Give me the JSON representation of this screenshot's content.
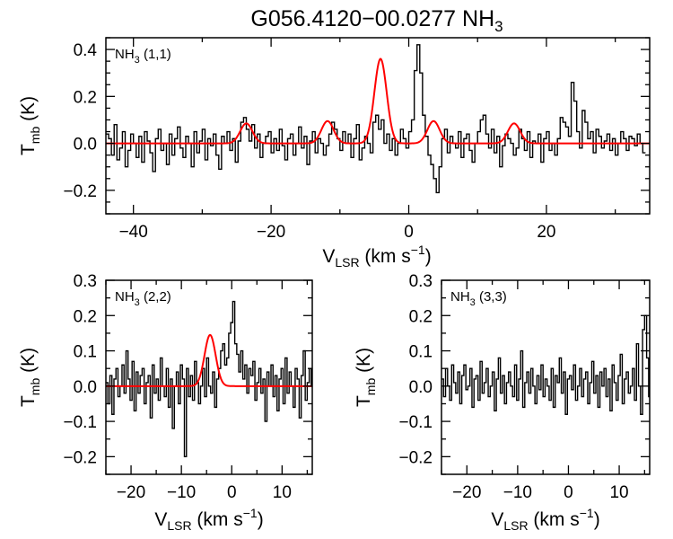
{
  "figure_title": {
    "main": "G056.4120−00.0277 NH",
    "sub": "3"
  },
  "colors": {
    "spectrum": "#000000",
    "fit": "#ff0000",
    "frame": "#000000",
    "background": "#ffffff"
  },
  "chart_data": [
    {
      "type": "line",
      "panel": "top",
      "panel_label": {
        "pre": "NH",
        "sub": "3",
        "post": " (1,1)"
      },
      "xlabel": {
        "pre": "V",
        "sub": "LSR",
        "post": " (km s",
        "sup": "−1",
        "end": ")"
      },
      "ylabel": {
        "pre": "T",
        "sub": "mb",
        "post": " (K)"
      },
      "xlim": [
        -44,
        35
      ],
      "ylim": [
        -0.3,
        0.45
      ],
      "xticks": [
        -40,
        -20,
        0,
        20
      ],
      "xtick_labels": [
        "−40",
        "−20",
        "0",
        "20"
      ],
      "yticks": [
        -0.2,
        0.0,
        0.2,
        0.4
      ],
      "ytick_labels": [
        "−0.2",
        "0.0",
        "0.2",
        "0.4"
      ],
      "series": [
        {
          "name": "spectrum",
          "style": "step",
          "channel_width": 0.4,
          "x_start": -44.0,
          "values": [
            0.04,
            0.02,
            -0.05,
            0.08,
            -0.07,
            -0.02,
            0.05,
            -0.1,
            -0.03,
            0.04,
            0.0,
            -0.06,
            0.03,
            -0.08,
            0.05,
            0.01,
            -0.04,
            -0.12,
            0.02,
            0.06,
            -0.03,
            0.0,
            -0.09,
            0.04,
            -0.05,
            0.02,
            0.07,
            -0.02,
            -0.06,
            0.03,
            0.0,
            -0.1,
            0.05,
            -0.04,
            0.01,
            0.06,
            -0.07,
            0.02,
            -0.01,
            0.04,
            -0.05,
            -0.11,
            0.03,
            0.0,
            0.05,
            -0.03,
            0.02,
            -0.08,
            0.01,
            0.09,
            0.11,
            0.06,
            0.01,
            0.08,
            -0.02,
            0.04,
            -0.06,
            0.0,
            0.03,
            0.05,
            -0.04,
            0.02,
            -0.03,
            0.06,
            -0.01,
            -0.07,
            0.02,
            0.04,
            -0.05,
            0.0,
            0.07,
            -0.02,
            0.03,
            -0.09,
            0.01,
            0.05,
            -0.04,
            0.02,
            0.0,
            -0.05,
            -0.01,
            0.04,
            0.09,
            0.06,
            0.02,
            -0.03,
            0.05,
            0.0,
            0.04,
            -0.06,
            0.02,
            0.08,
            -0.07,
            -0.02,
            0.03,
            0.0,
            -0.04,
            0.09,
            0.12,
            0.06,
            0.1,
            0.0,
            0.04,
            -0.03,
            0.02,
            -0.05,
            0.0,
            0.06,
            0.02,
            -0.02,
            0.05,
            0.1,
            0.31,
            0.42,
            0.3,
            0.12,
            0.03,
            -0.05,
            -0.09,
            -0.15,
            -0.21,
            -0.1,
            0.02,
            0.06,
            -0.04,
            0.03,
            0.0,
            -0.02,
            0.05,
            -0.06,
            0.02,
            0.04,
            -0.03,
            -0.08,
            0.0,
            0.05,
            0.1,
            0.12,
            0.04,
            -0.02,
            0.06,
            -0.04,
            0.03,
            -0.1,
            -0.01,
            0.04,
            0.02,
            0.0,
            -0.05,
            -0.02,
            0.06,
            0.02,
            -0.03,
            0.05,
            -0.06,
            0.01,
            0.0,
            0.04,
            -0.08,
            0.02,
            0.05,
            -0.03,
            0.0,
            -0.05,
            0.02,
            0.11,
            0.09,
            0.07,
            0.03,
            0.26,
            0.18,
            0.05,
            -0.02,
            0.14,
            0.09,
            0.02,
            0.05,
            -0.04,
            0.06,
            0.03,
            -0.02,
            0.01,
            0.04,
            -0.03,
            0.02,
            -0.05,
            0.0,
            0.05,
            0.02,
            -0.03,
            0.03,
            0.02,
            -0.01,
            0.04,
            0.0,
            -0.04
          ]
        },
        {
          "name": "gaussian-fit",
          "style": "smooth",
          "components": [
            {
              "center": -23.6,
              "amplitude": 0.085,
              "fwhm": 2.1
            },
            {
              "center": -11.8,
              "amplitude": 0.095,
              "fwhm": 2.1
            },
            {
              "center": -4.1,
              "amplitude": 0.36,
              "fwhm": 2.1
            },
            {
              "center": 3.6,
              "amplitude": 0.095,
              "fwhm": 2.1
            },
            {
              "center": 15.3,
              "amplitude": 0.085,
              "fwhm": 2.1
            }
          ]
        }
      ]
    },
    {
      "type": "line",
      "panel": "bottom-left",
      "panel_label": {
        "pre": "NH",
        "sub": "3",
        "post": " (2,2)"
      },
      "xlabel": {
        "pre": "V",
        "sub": "LSR",
        "post": " (km s",
        "sup": "−1",
        "end": ")"
      },
      "ylabel": {
        "pre": "T",
        "sub": "mb",
        "post": " (K)"
      },
      "xlim": [
        -25,
        16
      ],
      "ylim": [
        -0.25,
        0.3
      ],
      "xticks": [
        -20,
        -10,
        0,
        10
      ],
      "xtick_labels": [
        "−20",
        "−10",
        "0",
        "10"
      ],
      "yticks": [
        -0.2,
        -0.1,
        0.0,
        0.1,
        0.2,
        0.3
      ],
      "ytick_labels": [
        "−0.2",
        "−0.1",
        "0.0",
        "0.1",
        "0.2",
        "0.3"
      ],
      "series": [
        {
          "name": "spectrum",
          "style": "step",
          "channel_width": 0.4,
          "x_start": -25.0,
          "values": [
            0.01,
            -0.05,
            0.03,
            -0.08,
            0.02,
            0.05,
            -0.03,
            0.0,
            0.06,
            -0.02,
            0.1,
            0.02,
            -0.04,
            0.07,
            -0.07,
            0.04,
            -0.02,
            0.03,
            0.05,
            -0.05,
            0.01,
            0.03,
            -0.09,
            0.06,
            -0.02,
            0.02,
            -0.04,
            0.08,
            0.0,
            -0.03,
            0.05,
            -0.06,
            0.02,
            -0.12,
            0.0,
            0.04,
            -0.05,
            0.06,
            0.02,
            -0.2,
            0.05,
            -0.03,
            0.03,
            -0.04,
            0.07,
            0.01,
            -0.05,
            0.0,
            0.05,
            -0.03,
            0.08,
            0.0,
            -0.02,
            0.04,
            -0.06,
            0.02,
            0.05,
            0.1,
            0.12,
            0.06,
            0.08,
            0.15,
            0.18,
            0.24,
            0.12,
            0.09,
            0.04,
            0.1,
            0.02,
            0.06,
            -0.02,
            0.05,
            0.03,
            0.07,
            -0.04,
            0.01,
            0.05,
            -0.02,
            0.02,
            -0.1,
            0.04,
            0.0,
            0.06,
            -0.03,
            0.03,
            -0.07,
            0.02,
            0.05,
            -0.05,
            0.08,
            -0.02,
            0.04,
            0.0,
            -0.06,
            0.05,
            0.02,
            -0.09,
            0.03,
            0.1,
            -0.04,
            0.01,
            0.05,
            0.0,
            -0.03
          ]
        },
        {
          "name": "gaussian-fit",
          "style": "smooth",
          "components": [
            {
              "center": -4.3,
              "amplitude": 0.145,
              "fwhm": 2.6
            }
          ]
        }
      ]
    },
    {
      "type": "line",
      "panel": "bottom-right",
      "panel_label": {
        "pre": "NH",
        "sub": "3",
        "post": " (3,3)"
      },
      "xlabel": {
        "pre": "V",
        "sub": "LSR",
        "post": " (km s",
        "sup": "−1",
        "end": ")"
      },
      "ylabel": {
        "pre": "T",
        "sub": "mb",
        "post": " (K)"
      },
      "xlim": [
        -25,
        16
      ],
      "ylim": [
        -0.25,
        0.3
      ],
      "xticks": [
        -20,
        -10,
        0,
        10
      ],
      "xtick_labels": [
        "−20",
        "−10",
        "0",
        "10"
      ],
      "yticks": [
        -0.2,
        -0.1,
        0.0,
        0.1,
        0.2,
        0.3
      ],
      "ytick_labels": [
        "−0.2",
        "−0.1",
        "0.0",
        "0.1",
        "0.2",
        "0.3"
      ],
      "series": [
        {
          "name": "spectrum",
          "style": "step",
          "channel_width": 0.4,
          "x_start": -25.0,
          "values": [
            0.02,
            -0.03,
            0.05,
            0.0,
            -0.04,
            0.06,
            0.01,
            -0.02,
            0.04,
            -0.05,
            0.03,
            0.06,
            -0.01,
            0.0,
            0.05,
            -0.06,
            0.02,
            0.03,
            -0.04,
            0.07,
            -0.02,
            0.01,
            0.05,
            -0.03,
            0.0,
            0.04,
            -0.07,
            0.02,
            0.08,
            -0.02,
            0.03,
            -0.05,
            0.01,
            0.04,
            0.0,
            -0.03,
            0.06,
            -0.04,
            0.02,
            0.1,
            -0.06,
            0.01,
            0.04,
            -0.02,
            0.05,
            0.0,
            -0.05,
            0.03,
            -0.01,
            0.06,
            -0.03,
            0.02,
            0.0,
            -0.04,
            0.05,
            -0.06,
            0.03,
            0.01,
            0.08,
            -0.02,
            0.04,
            -0.08,
            0.02,
            0.03,
            -0.01,
            0.06,
            -0.04,
            0.0,
            0.05,
            -0.03,
            0.02,
            0.04,
            -0.05,
            0.01,
            0.07,
            -0.02,
            0.03,
            -0.06,
            0.04,
            0.0,
            0.05,
            -0.03,
            0.02,
            -0.07,
            0.06,
            0.01,
            -0.04,
            0.03,
            0.09,
            -0.05,
            0.02,
            0.04,
            -0.02,
            0.0,
            0.05,
            -0.04,
            0.12,
            0.0,
            -0.08,
            0.16,
            0.2,
            0.08,
            -0.03,
            0.04
          ]
        }
      ]
    }
  ]
}
